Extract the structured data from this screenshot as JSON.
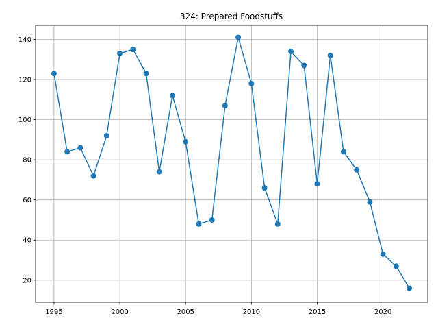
{
  "chart_data": {
    "type": "line",
    "title": "324: Prepared Foodstuffs",
    "xlabel": "",
    "ylabel": "",
    "xlim": [
      1993.6,
      2023.4
    ],
    "ylim": [
      9.0,
      147.0
    ],
    "x_ticks": [
      1995,
      2000,
      2005,
      2010,
      2015,
      2020
    ],
    "y_ticks": [
      20,
      40,
      60,
      80,
      100,
      120,
      140
    ],
    "grid": true,
    "color": "#1f77b4",
    "marker": "circle",
    "x": [
      1995,
      1996,
      1997,
      1998,
      1999,
      2000,
      2001,
      2002,
      2003,
      2004,
      2005,
      2006,
      2007,
      2008,
      2009,
      2010,
      2011,
      2012,
      2013,
      2014,
      2015,
      2016,
      2017,
      2018,
      2019,
      2020,
      2021,
      2022
    ],
    "values": [
      123,
      84,
      86,
      72,
      92,
      133,
      135,
      123,
      74,
      112,
      89,
      48,
      50,
      107,
      141,
      118,
      66,
      48,
      134,
      127,
      68,
      132,
      84,
      75,
      59,
      33,
      27,
      16
    ]
  }
}
